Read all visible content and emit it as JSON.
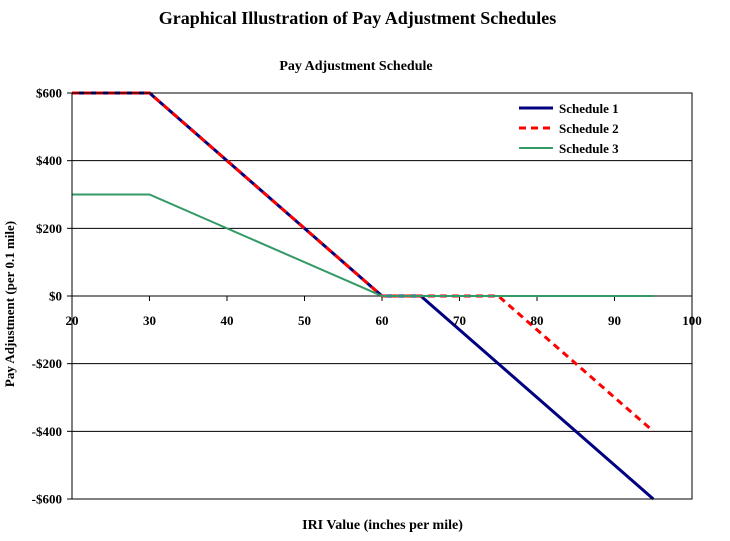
{
  "chart_data": {
    "type": "line",
    "title": "Graphical Illustration of Pay Adjustment Schedules",
    "subtitle": "Pay Adjustment Schedule",
    "xlabel": "IRI Value (inches per mile)",
    "ylabel": "Pay Adjustment  (per 0.1 mile)",
    "xlim": [
      20,
      100
    ],
    "ylim": [
      -600,
      600
    ],
    "x_ticks": [
      "20",
      "30",
      "40",
      "50",
      "60",
      "70",
      "80",
      "90",
      "100"
    ],
    "y_ticks": [
      "$600",
      "$400",
      "$200",
      "$0",
      "-$200",
      "-$400",
      "-$600"
    ],
    "grid": "horizontal",
    "legend_position": "top-right",
    "series": [
      {
        "name": "Schedule 1",
        "color": "#000080",
        "style": "solid",
        "x": [
          20,
          30,
          60,
          65,
          95
        ],
        "y": [
          600,
          600,
          0,
          0,
          -600
        ]
      },
      {
        "name": "Schedule 2",
        "color": "#ff0000",
        "style": "dashed",
        "x": [
          20,
          30,
          60,
          75,
          95
        ],
        "y": [
          600,
          600,
          0,
          0,
          -400
        ]
      },
      {
        "name": "Schedule 3",
        "color": "#339966",
        "style": "solid",
        "x": [
          20,
          30,
          60,
          95
        ],
        "y": [
          300,
          300,
          0,
          0
        ]
      }
    ]
  }
}
